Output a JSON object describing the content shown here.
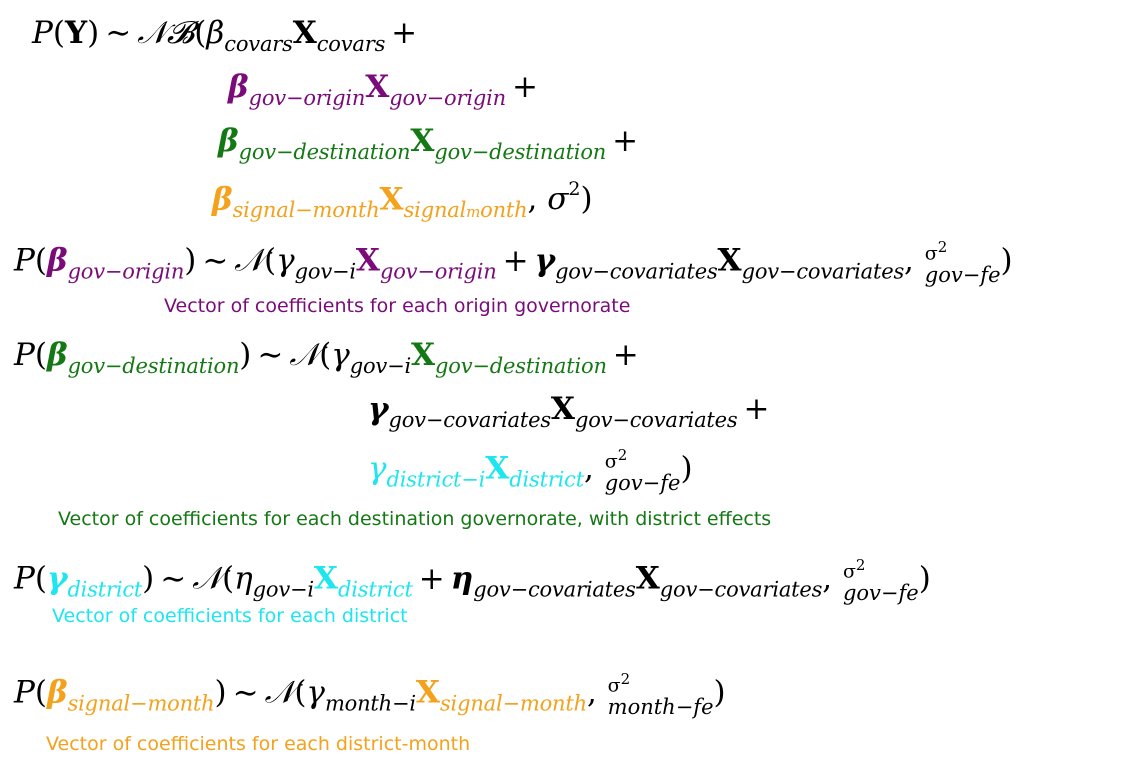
{
  "colors": {
    "black": "#000000",
    "purple": "#7a0c7a",
    "green": "#147814",
    "orange": "#f4a11c",
    "cyan": "#1ee6ee"
  },
  "captions": {
    "origin": "Vector of coefficients for each origin governorate",
    "destination": "Vector of coefficients for each destination governorate, with district effects",
    "district": "Vector of coefficients for each district",
    "month": "Vector of coefficients for each district-month"
  }
}
